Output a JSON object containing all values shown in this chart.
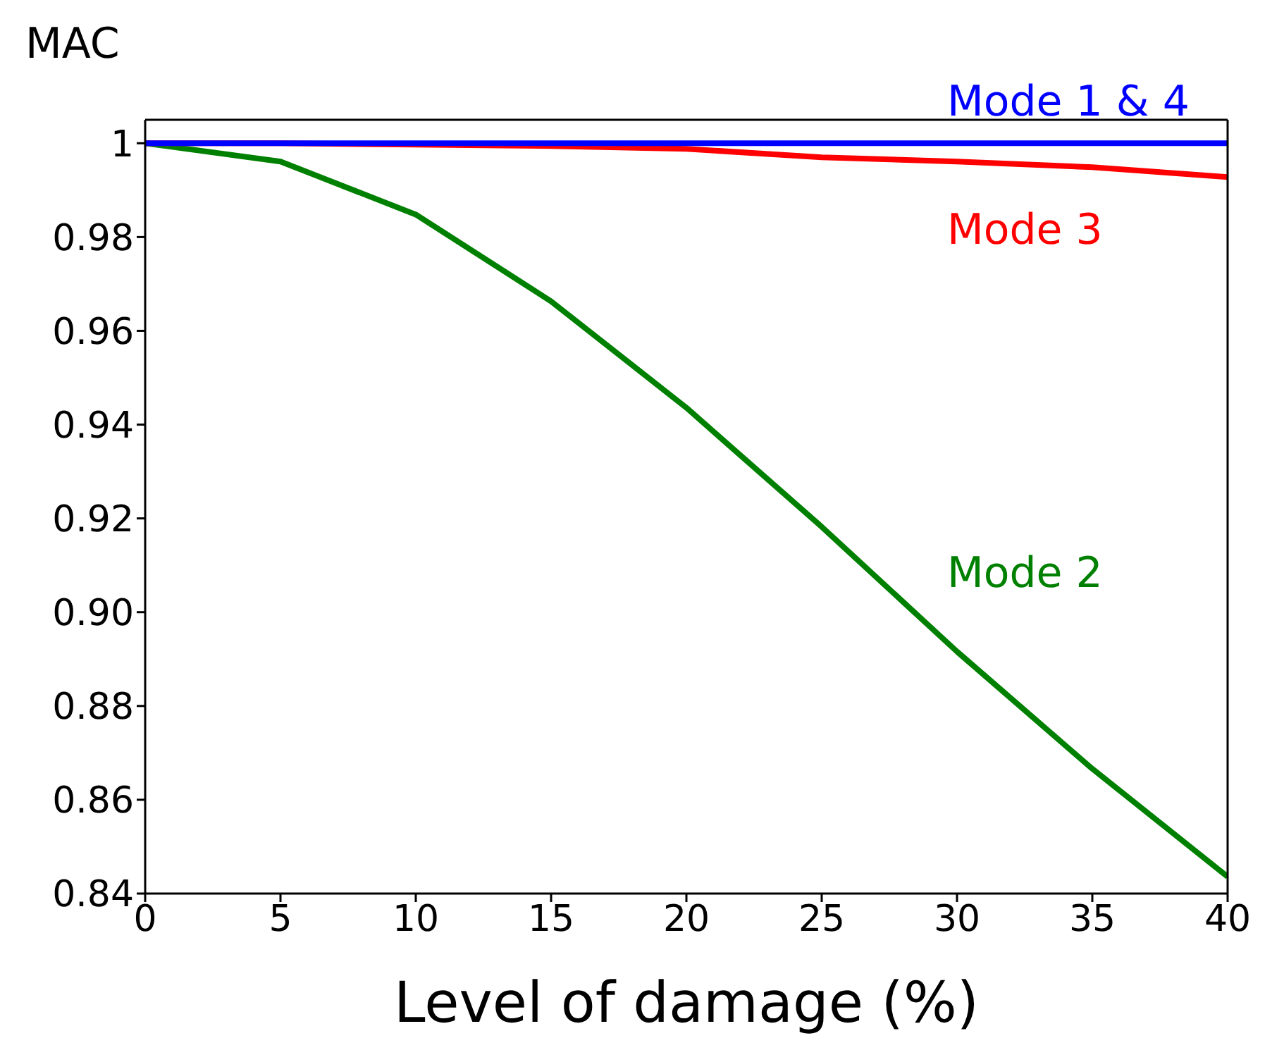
{
  "chart_data": {
    "type": "line",
    "xlabel": "Level of damage (%)",
    "ylabel": "MAC",
    "x": [
      0,
      5,
      10,
      15,
      20,
      25,
      30,
      35,
      40
    ],
    "series": [
      {
        "name": "Mode 1 & 4",
        "color": "#0000ff",
        "values": [
          1,
          1,
          1,
          1,
          1,
          1,
          1,
          1,
          1
        ]
      },
      {
        "name": "Mode 3",
        "color": "#ff0000",
        "values": [
          1,
          1,
          0.9997,
          0.9994,
          0.9988,
          0.997,
          0.9961,
          0.9949,
          0.9928
        ]
      },
      {
        "name": "Mode 2",
        "color": "#008000",
        "values": [
          1,
          0.9961,
          0.9848,
          0.9663,
          0.9436,
          0.9182,
          0.8916,
          0.8666,
          0.8436
        ]
      }
    ],
    "xlim": [
      0,
      40
    ],
    "xticks": [
      0,
      5,
      10,
      15,
      20,
      25,
      30,
      35,
      40
    ],
    "ylim": [
      0.84,
      1.005
    ],
    "yticks": [
      0.84,
      0.86,
      0.88,
      {
        "value": 0.9,
        "label": "0.90"
      },
      0.92,
      0.94,
      0.96,
      0.98,
      1
    ],
    "grid": false,
    "legend": false,
    "marker": "none",
    "line_style": "solid"
  }
}
